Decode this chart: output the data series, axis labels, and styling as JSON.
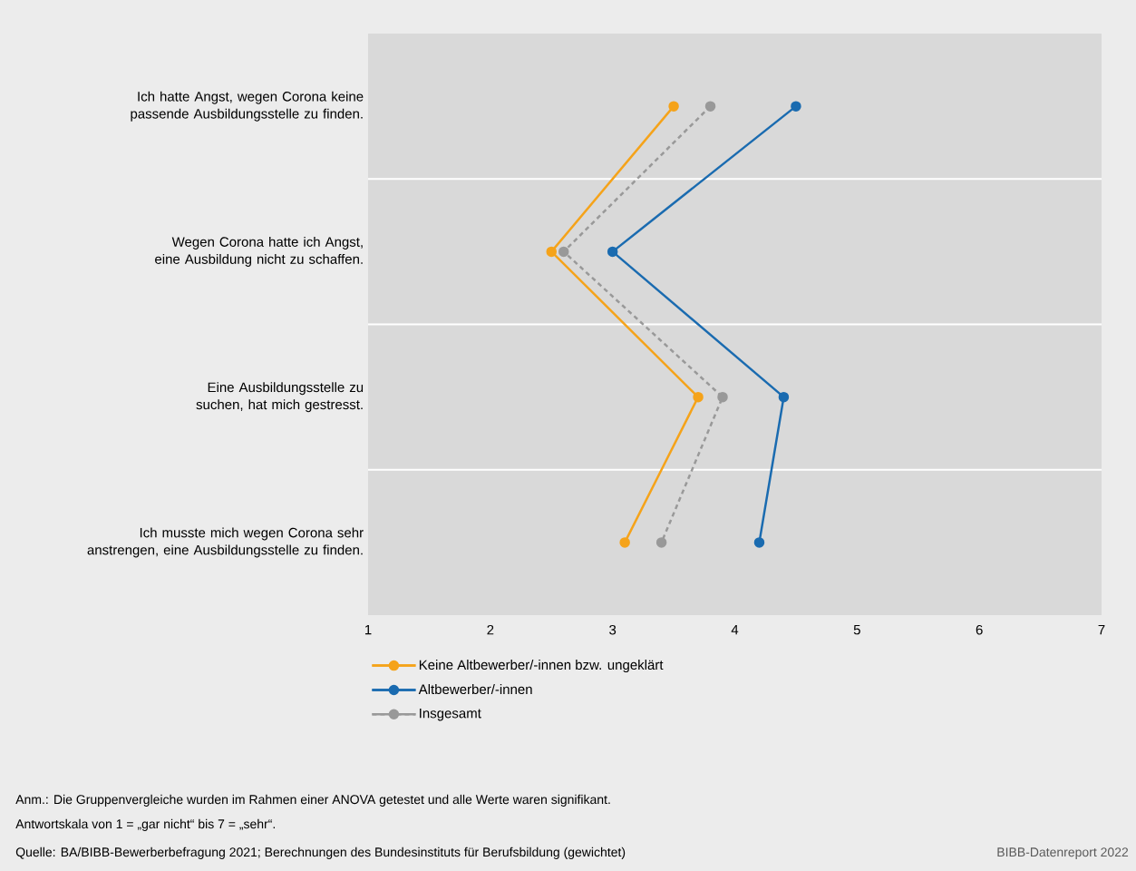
{
  "chart_data": {
    "type": "line",
    "orientation": "horizontal",
    "categories": [
      "Ich hatte Angst, wegen Corona keine passende Ausbildungsstelle zu finden.",
      "Wegen Corona hatte ich Angst, eine Ausbildung nicht zu schaffen.",
      "Eine Ausbildungsstelle zu suchen, hat mich gestresst.",
      "Ich musste mich wegen Corona sehr anstrengen, eine Ausbildungsstelle zu finden."
    ],
    "series": [
      {
        "name": "Keine Altbewerber/-innen bzw. ungeklärt",
        "color": "#f5a31a",
        "values": [
          3.5,
          2.5,
          3.7,
          3.1
        ]
      },
      {
        "name": "Altbewerber/-innen",
        "color": "#1a6bb0",
        "values": [
          4.5,
          3.0,
          4.4,
          4.2
        ]
      },
      {
        "name": "Insgesamt",
        "color": "#999999",
        "line_style": "dashed",
        "values": [
          3.8,
          2.6,
          3.9,
          3.4
        ]
      }
    ],
    "xlim": [
      1,
      7
    ],
    "xticks": [
      1,
      2,
      3,
      4,
      5,
      6,
      7
    ],
    "grid": "y",
    "legend": "bottom",
    "marker": "circle",
    "line_style": "solid",
    "annotations": [
      "Anm.: Die Gruppenvergleiche wurden im Rahmen einer ANOVA getestet und alle Werte waren signifikant.",
      "Antwortskala von 1 = „gar nicht“ bis 7 = „sehr“.",
      "Quelle: BA/BIBB-Bewerberbefragung 2021; Berechnungen des Bundesinstituts für Berufsbildung (gewichtet)",
      "BIBB-Datenreport 2022"
    ]
  }
}
